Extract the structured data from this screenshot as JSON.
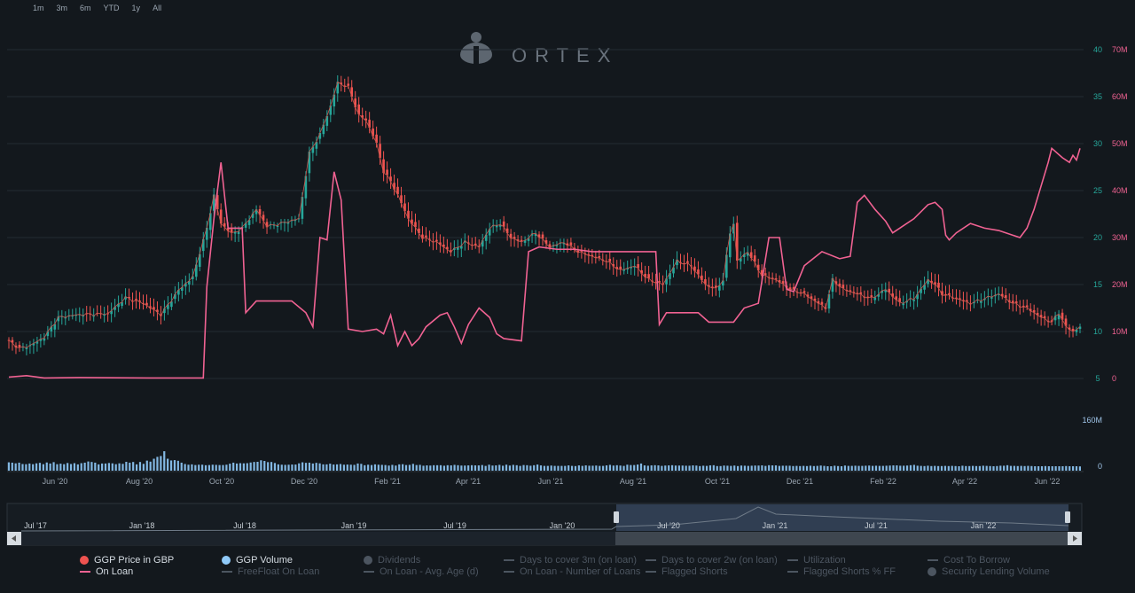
{
  "range_buttons": [
    "1m",
    "3m",
    "6m",
    "YTD",
    "1y",
    "All"
  ],
  "watermark": "ORTEX",
  "colors": {
    "background": "#13181d",
    "grid": "#232b33",
    "up_candle": "#26a69a",
    "down_candle": "#ef5350",
    "on_loan": "#f06292",
    "volume": "#90caf9",
    "navigator_band": "#3a4a63"
  },
  "chart_data": {
    "type": "line",
    "title": "",
    "x_ticks": [
      "Jun '20",
      "Aug '20",
      "Oct '20",
      "Dec '20",
      "Feb '21",
      "Apr '21",
      "Jun '21",
      "Aug '21",
      "Oct '21",
      "Dec '21",
      "Feb '22",
      "Apr '22",
      "Jun '22"
    ],
    "y_left_ticks": [
      "5",
      "10",
      "15",
      "20",
      "25",
      "30",
      "35",
      "40"
    ],
    "y_left_range": [
      5,
      40
    ],
    "y_right_ticks": [
      "0",
      "10M",
      "20M",
      "30M",
      "40M",
      "50M",
      "60M",
      "70M"
    ],
    "y_right_range": [
      0,
      70000000
    ],
    "volume_ticks": [
      "0",
      "160M"
    ],
    "volume_range": [
      0,
      160000000
    ],
    "series": [
      {
        "name": "GGP Price in GBP",
        "axis": "left",
        "points": [
          [
            0,
            9.0
          ],
          [
            3,
            8.2
          ],
          [
            6,
            8.5
          ],
          [
            10,
            9.4
          ],
          [
            14,
            11.5
          ],
          [
            20,
            11.8
          ],
          [
            28,
            11.9
          ],
          [
            33,
            13.6
          ],
          [
            38,
            13.0
          ],
          [
            43,
            11.8
          ],
          [
            48,
            14.4
          ],
          [
            52,
            15.8
          ],
          [
            56,
            21.0
          ],
          [
            58,
            24.5
          ],
          [
            60,
            21.5
          ],
          [
            63,
            20.4
          ],
          [
            66,
            21.0
          ],
          [
            70,
            23.0
          ],
          [
            73,
            21.2
          ],
          [
            77,
            21.5
          ],
          [
            82,
            22.0
          ],
          [
            85,
            29.0
          ],
          [
            88,
            31.0
          ],
          [
            91,
            34.0
          ],
          [
            93,
            36.5
          ],
          [
            96,
            36.0
          ],
          [
            99,
            33.0
          ],
          [
            101,
            32.5
          ],
          [
            104,
            30.0
          ],
          [
            106,
            27.0
          ],
          [
            108,
            26.0
          ],
          [
            110,
            24.5
          ],
          [
            113,
            22.0
          ],
          [
            117,
            20.0
          ],
          [
            121,
            19.5
          ],
          [
            125,
            18.5
          ],
          [
            129,
            19.5
          ],
          [
            133,
            19.0
          ],
          [
            136,
            21.0
          ],
          [
            139,
            21.5
          ],
          [
            142,
            20.0
          ],
          [
            145,
            19.5
          ],
          [
            149,
            20.5
          ],
          [
            153,
            19.0
          ],
          [
            157,
            19.5
          ],
          [
            161,
            18.5
          ],
          [
            165,
            18.0
          ],
          [
            169,
            17.5
          ],
          [
            173,
            16.5
          ],
          [
            177,
            17.0
          ],
          [
            181,
            15.5
          ],
          [
            185,
            15.0
          ],
          [
            189,
            17.5
          ],
          [
            193,
            17.0
          ],
          [
            197,
            15.0
          ],
          [
            200,
            14.5
          ],
          [
            202,
            15.5
          ],
          [
            204,
            20.5
          ],
          [
            205,
            21.5
          ],
          [
            206,
            17.5
          ],
          [
            209,
            18.5
          ],
          [
            213,
            16.0
          ],
          [
            217,
            15.5
          ],
          [
            221,
            14.5
          ],
          [
            225,
            14.0
          ],
          [
            229,
            13.0
          ],
          [
            231,
            12.5
          ],
          [
            233,
            15.5
          ],
          [
            236,
            14.5
          ],
          [
            240,
            14.0
          ],
          [
            244,
            13.5
          ],
          [
            248,
            14.5
          ],
          [
            252,
            13.0
          ],
          [
            256,
            13.5
          ],
          [
            260,
            15.5
          ],
          [
            262,
            15.0
          ],
          [
            264,
            14.0
          ],
          [
            268,
            13.5
          ],
          [
            272,
            13.0
          ],
          [
            276,
            13.5
          ],
          [
            280,
            14.0
          ],
          [
            284,
            13.0
          ],
          [
            288,
            12.5
          ],
          [
            292,
            11.5
          ],
          [
            295,
            11.0
          ],
          [
            297,
            12.0
          ],
          [
            299,
            10.5
          ],
          [
            301,
            10.0
          ],
          [
            303,
            10.5
          ]
        ]
      },
      {
        "name": "On Loan",
        "axis": "right",
        "points": [
          [
            0,
            0.3
          ],
          [
            5,
            0.6
          ],
          [
            10,
            0.1
          ],
          [
            20,
            0.2
          ],
          [
            40,
            0.1
          ],
          [
            55,
            0.1
          ],
          [
            56,
            19.5
          ],
          [
            58,
            34.0
          ],
          [
            60,
            46.0
          ],
          [
            62,
            32.0
          ],
          [
            66,
            32.0
          ],
          [
            67,
            14.0
          ],
          [
            70,
            16.5
          ],
          [
            80,
            16.5
          ],
          [
            84,
            14.0
          ],
          [
            86,
            11.0
          ],
          [
            88,
            30.0
          ],
          [
            90,
            29.5
          ],
          [
            92,
            44.0
          ],
          [
            94,
            38.0
          ],
          [
            96,
            10.5
          ],
          [
            100,
            10.0
          ],
          [
            104,
            10.5
          ],
          [
            106,
            9.5
          ],
          [
            108,
            13.5
          ],
          [
            110,
            7.0
          ],
          [
            112,
            10.0
          ],
          [
            114,
            7.0
          ],
          [
            116,
            8.5
          ],
          [
            118,
            11.0
          ],
          [
            122,
            13.5
          ],
          [
            124,
            14.0
          ],
          [
            126,
            11.0
          ],
          [
            128,
            7.5
          ],
          [
            130,
            11.5
          ],
          [
            133,
            15.0
          ],
          [
            136,
            13.0
          ],
          [
            138,
            9.5
          ],
          [
            140,
            8.5
          ],
          [
            145,
            8.0
          ],
          [
            147,
            27.0
          ],
          [
            150,
            28.0
          ],
          [
            155,
            27.5
          ],
          [
            160,
            27.5
          ],
          [
            165,
            27.0
          ],
          [
            170,
            27.0
          ],
          [
            180,
            27.0
          ],
          [
            183,
            27.0
          ],
          [
            184,
            11.5
          ],
          [
            186,
            14.0
          ],
          [
            195,
            14.0
          ],
          [
            198,
            12.0
          ],
          [
            205,
            12.0
          ],
          [
            208,
            15.0
          ],
          [
            212,
            16.0
          ],
          [
            215,
            30.0
          ],
          [
            218,
            30.0
          ],
          [
            220,
            19.0
          ],
          [
            222,
            18.5
          ],
          [
            225,
            24.0
          ],
          [
            230,
            27.0
          ],
          [
            235,
            25.5
          ],
          [
            238,
            26.0
          ],
          [
            240,
            37.5
          ],
          [
            242,
            39.0
          ],
          [
            245,
            36.0
          ],
          [
            248,
            33.5
          ],
          [
            250,
            31.0
          ],
          [
            252,
            32.0
          ],
          [
            256,
            34.0
          ],
          [
            260,
            37.0
          ],
          [
            262,
            37.5
          ],
          [
            264,
            36.0
          ],
          [
            265,
            30.5
          ],
          [
            266,
            29.5
          ],
          [
            268,
            31.0
          ],
          [
            272,
            33.0
          ],
          [
            276,
            32.0
          ],
          [
            280,
            31.5
          ],
          [
            284,
            30.5
          ],
          [
            286,
            30.0
          ],
          [
            288,
            32.0
          ],
          [
            290,
            36.0
          ],
          [
            292,
            41.0
          ],
          [
            294,
            46.0
          ],
          [
            295,
            49.0
          ],
          [
            298,
            47.0
          ],
          [
            300,
            46.0
          ],
          [
            301,
            47.5
          ],
          [
            302,
            46.5
          ],
          [
            303,
            49.0
          ]
        ]
      },
      {
        "name": "GGP Volume",
        "axis": "volume",
        "values": [
          49,
          47,
          43,
          47,
          39,
          38,
          42,
          38,
          43,
          46,
          38,
          48,
          42,
          50,
          38,
          41,
          38,
          45,
          39,
          44,
          37,
          44,
          47,
          54,
          51,
          47,
          37,
          42,
          42,
          45,
          43,
          38,
          43,
          40,
          52,
          47,
          51,
          37,
          51,
          40,
          59,
          53,
          70,
          81,
          86,
          114,
          70,
          60,
          62,
          58,
          47,
          39,
          35,
          37,
          33,
          35,
          35,
          32,
          33,
          35,
          34,
          33,
          33,
          35,
          41,
          47,
          42,
          44,
          43,
          44,
          48,
          51,
          52,
          61,
          57,
          50,
          51,
          45,
          37,
          35,
          34,
          35,
          36,
          36,
          43,
          49,
          46,
          47,
          42,
          46,
          43,
          37,
          37,
          41,
          36,
          37,
          39,
          35,
          36,
          35,
          34,
          42,
          40,
          32,
          35,
          33,
          37,
          35,
          34,
          33,
          30,
          34,
          30,
          37,
          38,
          33,
          34,
          40,
          33,
          34,
          29,
          31,
          30,
          32,
          32,
          32,
          29,
          32,
          31,
          34,
          32,
          30,
          30,
          31,
          32,
          31,
          31,
          33,
          28,
          35,
          30,
          31,
          34,
          29,
          35,
          30,
          34,
          32,
          28,
          33,
          32,
          29,
          32,
          36,
          31,
          28,
          28,
          30,
          28,
          28,
          28,
          28,
          31,
          28,
          27,
          31,
          28,
          31,
          29,
          29,
          30,
          28,
          28,
          31,
          34,
          30,
          32,
          30,
          28,
          35,
          33,
          33,
          36,
          42,
          31,
          29,
          31,
          32,
          31,
          28,
          30,
          31,
          32,
          30,
          30,
          30,
          29,
          29,
          31,
          30,
          27,
          29,
          28,
          31,
          32,
          27,
          27,
          30,
          29,
          28,
          30,
          27,
          30,
          29,
          28,
          29,
          30,
          30,
          31,
          28,
          32,
          31,
          31,
          28,
          29,
          29,
          29,
          27,
          28,
          27,
          28,
          27,
          29,
          27,
          28,
          30,
          28,
          26,
          26,
          29,
          27,
          26,
          30,
          28,
          28,
          29,
          28,
          28,
          29,
          30,
          28,
          29,
          28,
          28,
          29,
          30,
          31,
          31,
          29,
          29,
          30,
          32,
          34,
          29,
          28,
          27,
          29,
          27,
          28,
          27,
          27,
          28,
          27,
          28,
          27,
          26,
          29,
          27,
          27,
          28,
          27,
          27,
          29,
          28,
          27,
          26,
          27,
          29,
          29,
          32,
          28,
          28,
          27,
          28,
          27,
          28,
          27,
          26,
          26,
          26,
          27,
          26,
          26,
          26,
          26,
          26,
          27,
          26,
          26,
          26,
          25
        ]
      }
    ],
    "navigator": {
      "x_ticks": [
        "Jul '17",
        "Jan '18",
        "Jul '18",
        "Jan '19",
        "Jul '19",
        "Jan '20",
        "Jul '20",
        "Jan '21",
        "Jul '21",
        "Jan '22"
      ],
      "selection": [
        "Jun '20",
        "Jun '22"
      ]
    }
  },
  "legend": {
    "row1": [
      {
        "label": "GGP Price in GBP",
        "marker": "dot",
        "color": "#ef5350",
        "active": true
      },
      {
        "label": "GGP Volume",
        "marker": "dot",
        "color": "#90caf9",
        "active": true
      },
      {
        "label": "Dividends",
        "marker": "dot",
        "color": "#4c5560",
        "active": false
      },
      {
        "label": "Days to cover 3m (on loan)",
        "marker": "dash",
        "color": "#4c5560",
        "active": false
      },
      {
        "label": "Days to cover 2w (on loan)",
        "marker": "dash",
        "color": "#4c5560",
        "active": false
      },
      {
        "label": "Utilization",
        "marker": "dash",
        "color": "#4c5560",
        "active": false
      },
      {
        "label": "Cost To Borrow",
        "marker": "dash",
        "color": "#4c5560",
        "active": false
      }
    ],
    "row2": [
      {
        "label": "On Loan",
        "marker": "dash",
        "color": "#f06292",
        "active": true
      },
      {
        "label": "FreeFloat On Loan",
        "marker": "dash",
        "color": "#4c5560",
        "active": false
      },
      {
        "label": "On Loan - Avg. Age (d)",
        "marker": "dash",
        "color": "#4c5560",
        "active": false
      },
      {
        "label": "On Loan - Number of Loans",
        "marker": "dash",
        "color": "#4c5560",
        "active": false
      },
      {
        "label": "Flagged Shorts",
        "marker": "dash",
        "color": "#4c5560",
        "active": false
      },
      {
        "label": "Flagged Shorts % FF",
        "marker": "dash",
        "color": "#4c5560",
        "active": false
      },
      {
        "label": "Security Lending Volume",
        "marker": "dot",
        "color": "#4c5560",
        "active": false
      }
    ]
  }
}
